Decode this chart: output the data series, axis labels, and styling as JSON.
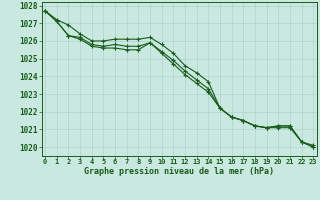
{
  "xlabel": "Graphe pression niveau de la mer (hPa)",
  "ylim": [
    1019.5,
    1028.2
  ],
  "xlim": [
    -0.3,
    23.3
  ],
  "yticks": [
    1020,
    1021,
    1022,
    1023,
    1024,
    1025,
    1026,
    1027,
    1028
  ],
  "xticks": [
    0,
    1,
    2,
    3,
    4,
    5,
    6,
    7,
    8,
    9,
    10,
    11,
    12,
    13,
    14,
    15,
    16,
    17,
    18,
    19,
    20,
    21,
    22,
    23
  ],
  "bg_color": "#c8e8e0",
  "line_color": "#1a5c1a",
  "line1": [
    1027.7,
    1027.2,
    1026.9,
    1026.4,
    1026.0,
    1026.0,
    1026.1,
    1026.1,
    1026.1,
    1026.2,
    1025.8,
    1025.3,
    1024.6,
    1024.2,
    1023.7,
    1022.2,
    1021.7,
    1021.5,
    1021.2,
    1021.1,
    1021.2,
    1021.2,
    1020.3,
    1020.1
  ],
  "line2": [
    1027.7,
    1027.1,
    1026.3,
    1026.2,
    1025.8,
    1025.7,
    1025.8,
    1025.7,
    1025.7,
    1025.9,
    1025.4,
    1024.9,
    1024.3,
    1023.8,
    1023.3,
    1022.2,
    1021.7,
    1021.5,
    1021.2,
    1021.1,
    1021.1,
    1021.1,
    1020.3,
    1020.0
  ],
  "line3": [
    1027.7,
    1027.1,
    1026.3,
    1026.1,
    1025.7,
    1025.6,
    1025.6,
    1025.5,
    1025.5,
    1025.9,
    1025.3,
    1024.7,
    1024.1,
    1023.6,
    1023.1,
    1022.2,
    1021.7,
    1021.5,
    1021.2,
    1021.1,
    1021.2,
    1021.2,
    1020.3,
    1020.0
  ]
}
